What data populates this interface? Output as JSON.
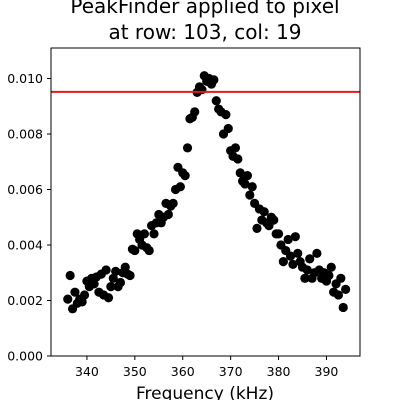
{
  "chart_data": {
    "type": "scatter",
    "title_lines": [
      "PeakFinder applied to pixel",
      "at row: 103, col: 19"
    ],
    "xlabel": "Frequency (kHz)",
    "ylabel": "",
    "xlim": [
      332.5,
      397
    ],
    "ylim": [
      0,
      0.0111
    ],
    "x_ticks": [
      340,
      350,
      360,
      370,
      380,
      390
    ],
    "x_tick_labels": [
      "340",
      "350",
      "360",
      "370",
      "380",
      "390"
    ],
    "y_ticks": [
      0,
      0.002,
      0.004,
      0.006,
      0.008,
      0.01
    ],
    "y_tick_labels": [
      "0.000",
      "0.002",
      "0.004",
      "0.006",
      "0.008",
      "0.010"
    ],
    "grid": false,
    "legend": "none",
    "marker_color": "#000000",
    "hline": {
      "y": 0.00952,
      "color": "#e31a1c"
    },
    "points": {
      "x": [
        336.0,
        336.5,
        337.0,
        337.5,
        338.0,
        338.5,
        339.0,
        339.5,
        340.0,
        340.5,
        341.0,
        341.5,
        342.0,
        342.5,
        343.0,
        343.5,
        344.0,
        344.5,
        345.0,
        345.5,
        346.0,
        346.5,
        347.0,
        347.5,
        348.0,
        348.5,
        349.0,
        349.5,
        350.0,
        350.5,
        351.0,
        351.5,
        352.0,
        352.5,
        353.0,
        353.5,
        354.0,
        354.5,
        355.0,
        355.5,
        356.0,
        356.5,
        357.0,
        357.5,
        358.0,
        358.5,
        359.0,
        359.5,
        360.0,
        360.5,
        361.0,
        361.5,
        362.0,
        362.5,
        363.0,
        363.5,
        364.0,
        364.5,
        365.0,
        365.5,
        366.0,
        366.5,
        367.0,
        367.5,
        368.0,
        368.5,
        369.0,
        369.5,
        370.0,
        370.5,
        371.0,
        371.5,
        372.0,
        372.5,
        373.0,
        373.5,
        374.0,
        374.5,
        375.0,
        375.5,
        376.0,
        376.5,
        377.0,
        377.5,
        378.0,
        378.5,
        379.0,
        379.5,
        380.0,
        380.5,
        381.0,
        381.5,
        382.0,
        382.5,
        383.0,
        383.5,
        384.0,
        384.5,
        385.0,
        385.5,
        386.0,
        386.5,
        387.0,
        387.5,
        388.0,
        388.5,
        389.0,
        389.5,
        390.0,
        390.5,
        391.0,
        391.5,
        392.0,
        392.5,
        393.0,
        393.5,
        394.0
      ],
      "y": [
        0.00205,
        0.0029,
        0.0017,
        0.0023,
        0.0019,
        0.00205,
        0.00195,
        0.0022,
        0.0027,
        0.0025,
        0.0028,
        0.0026,
        0.00285,
        0.0023,
        0.00295,
        0.0022,
        0.0031,
        0.0021,
        0.0025,
        0.0028,
        0.00305,
        0.0025,
        0.00265,
        0.003,
        0.0032,
        0.00295,
        0.0029,
        0.00385,
        0.0038,
        0.0044,
        0.0042,
        0.004,
        0.0044,
        0.0039,
        0.0038,
        0.0047,
        0.0044,
        0.0048,
        0.0051,
        0.0048,
        0.005,
        0.0055,
        0.0051,
        0.0054,
        0.0055,
        0.006,
        0.0068,
        0.0061,
        0.0066,
        0.0065,
        0.0075,
        0.00855,
        0.0086,
        0.0088,
        0.0095,
        0.0097,
        0.0096,
        0.0101,
        0.0099,
        0.01,
        0.0098,
        0.00995,
        0.0092,
        0.0089,
        0.0088,
        0.008,
        0.0087,
        0.0082,
        0.0074,
        0.0072,
        0.0075,
        0.0071,
        0.0066,
        0.0063,
        0.0062,
        0.0065,
        0.0058,
        0.0061,
        0.0055,
        0.0046,
        0.0053,
        0.0049,
        0.0052,
        0.0048,
        0.0047,
        0.005,
        0.0049,
        0.0044,
        0.0044,
        0.004,
        0.0034,
        0.0038,
        0.0042,
        0.0036,
        0.0033,
        0.0043,
        0.0037,
        0.0034,
        0.0032,
        0.0028,
        0.0031,
        0.0035,
        0.0028,
        0.003,
        0.0037,
        0.0031,
        0.0028,
        0.003,
        0.0027,
        0.0029,
        0.0032,
        0.0023,
        0.0026,
        0.0022,
        0.0028,
        0.00175,
        0.0024
      ]
    }
  }
}
